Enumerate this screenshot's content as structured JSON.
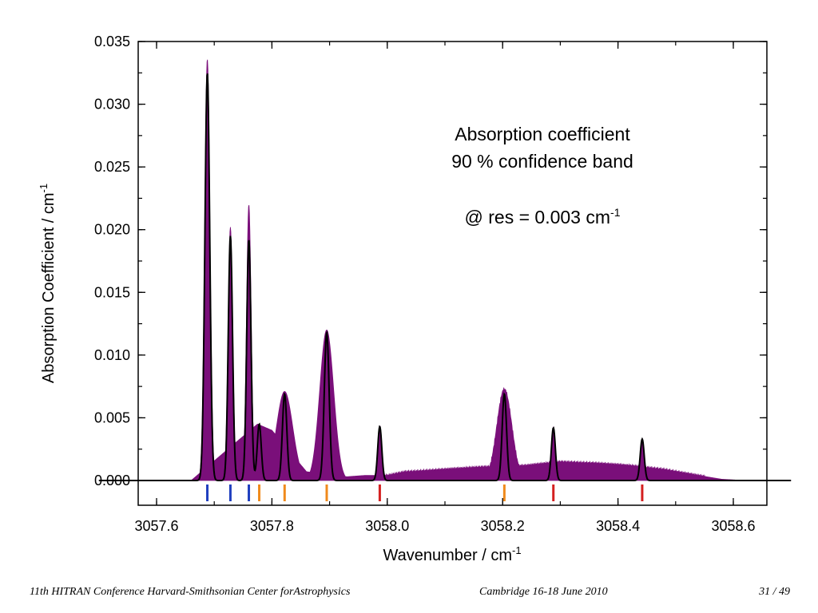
{
  "footer": {
    "conference": "11th HITRAN Conference  Harvard-Smithsonian Center forAstrophysics",
    "location_date": "Cambridge 16-18 June 2010",
    "page": "31 / 49"
  },
  "chart_data": {
    "type": "line",
    "xlabel": "Wavenumber / cm",
    "xlabel_sup": "-1",
    "ylabel": "Absorption Coefficient / cm",
    "ylabel_sup": "-1",
    "xlim": [
      3057.5,
      3058.7
    ],
    "ylim": [
      -0.002,
      0.035
    ],
    "xticks": [
      3057.6,
      3057.8,
      3058.0,
      3058.2,
      3058.4,
      3058.6
    ],
    "xtick_labels": [
      "3057.6",
      "3057.8",
      "3058.0",
      "3058.2",
      "3058.4",
      "3058.6"
    ],
    "yticks": [
      0.0,
      0.005,
      0.01,
      0.015,
      0.02,
      0.025,
      0.03,
      0.035
    ],
    "ytick_labels": [
      "0.000",
      "0.005",
      "0.010",
      "0.015",
      "0.020",
      "0.025",
      "0.030",
      "0.035"
    ],
    "grid": false,
    "annotation": {
      "line1": "Absorption coefficient",
      "line2": "90 % confidence band",
      "line3": "@ res = 0.003 cm",
      "line3_sup": "-1"
    },
    "colors": {
      "band": "#7a0f7a",
      "line": "#000000",
      "marker_blue": "#1f3fbf",
      "marker_orange": "#f08a1c",
      "marker_red": "#d42020"
    },
    "series": [
      {
        "role": "absorption_coefficient",
        "peaks": [
          {
            "center": 3057.688,
            "height": 0.0325,
            "width": 0.0042
          },
          {
            "center": 3057.728,
            "height": 0.0195,
            "width": 0.0037
          },
          {
            "center": 3057.76,
            "height": 0.0192,
            "width": 0.0037
          },
          {
            "center": 3057.778,
            "height": 0.0045,
            "width": 0.0035
          },
          {
            "center": 3057.822,
            "height": 0.0069,
            "width": 0.0038
          },
          {
            "center": 3057.895,
            "height": 0.0118,
            "width": 0.0042
          },
          {
            "center": 3057.987,
            "height": 0.0043,
            "width": 0.0035
          },
          {
            "center": 3058.203,
            "height": 0.0069,
            "width": 0.0038
          },
          {
            "center": 3058.288,
            "height": 0.0042,
            "width": 0.0035
          },
          {
            "center": 3058.442,
            "height": 0.0033,
            "width": 0.0035
          }
        ]
      },
      {
        "role": "confidence_band_upper",
        "peaks": [
          {
            "center": 3057.688,
            "height": 0.0336,
            "width": 0.0045
          },
          {
            "center": 3057.728,
            "height": 0.0202,
            "width": 0.004
          },
          {
            "center": 3057.76,
            "height": 0.022,
            "width": 0.004
          },
          {
            "center": 3057.822,
            "height": 0.0071,
            "width": 0.014
          },
          {
            "center": 3057.895,
            "height": 0.012,
            "width": 0.012
          },
          {
            "center": 3058.203,
            "height": 0.0073,
            "width": 0.013
          }
        ],
        "baseline_points": [
          [
            3057.5,
            0.0
          ],
          [
            3057.66,
            0.0
          ],
          [
            3057.775,
            0.0045
          ],
          [
            3057.8,
            0.004
          ],
          [
            3057.86,
            0.0007
          ],
          [
            3057.93,
            0.0003
          ],
          [
            3057.96,
            0.0004
          ],
          [
            3058.0,
            0.0004
          ],
          [
            3058.03,
            0.0007
          ],
          [
            3058.1,
            0.0009
          ],
          [
            3058.17,
            0.0011
          ],
          [
            3058.24,
            0.0012
          ],
          [
            3058.3,
            0.0015
          ],
          [
            3058.36,
            0.0014
          ],
          [
            3058.42,
            0.0012
          ],
          [
            3058.48,
            0.0009
          ],
          [
            3058.54,
            0.0004
          ],
          [
            3058.58,
            0.0001
          ],
          [
            3058.62,
            0.0
          ],
          [
            3058.7,
            0.0
          ]
        ]
      }
    ],
    "line_markers": [
      {
        "x": 3057.688,
        "color": "blue"
      },
      {
        "x": 3057.728,
        "color": "blue"
      },
      {
        "x": 3057.76,
        "color": "blue"
      },
      {
        "x": 3057.778,
        "color": "orange"
      },
      {
        "x": 3057.822,
        "color": "orange"
      },
      {
        "x": 3057.895,
        "color": "orange"
      },
      {
        "x": 3057.987,
        "color": "red"
      },
      {
        "x": 3058.203,
        "color": "orange"
      },
      {
        "x": 3058.288,
        "color": "red"
      },
      {
        "x": 3058.442,
        "color": "red"
      }
    ]
  }
}
